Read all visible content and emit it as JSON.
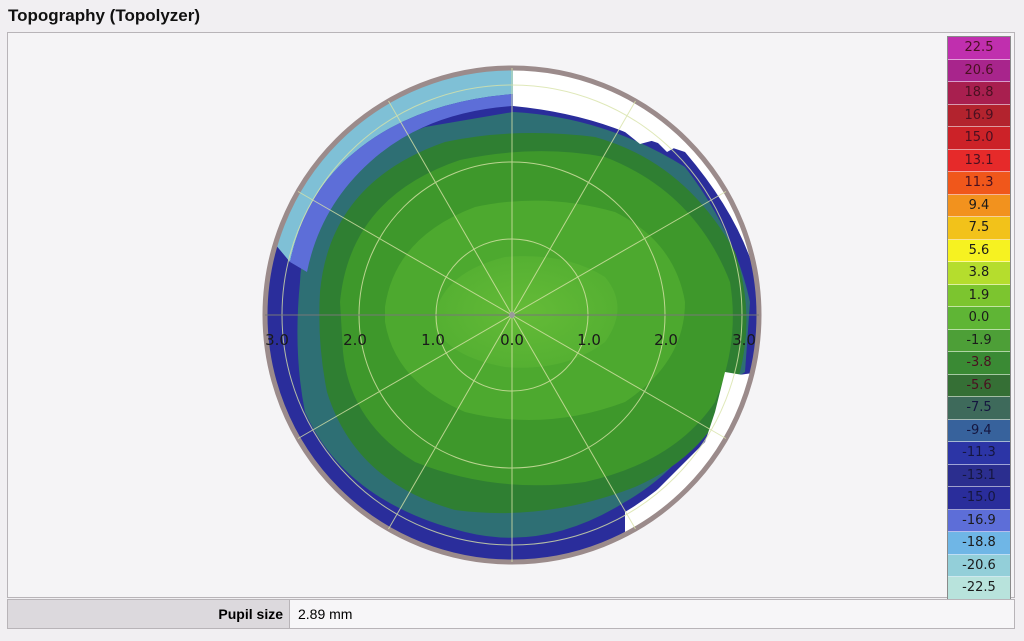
{
  "title": "Topography (Topolyzer)",
  "map": {
    "axis_labels": [
      "3.0",
      "2.0",
      "1.0",
      "0.0",
      "1.0",
      "2.0",
      "3.0"
    ],
    "colors": {
      "rim": "#9b8b8b",
      "bg": "#ffffff",
      "green_center": "#5fb535",
      "green_mid": "#4da92f",
      "green_outer": "#3e982b",
      "green_dark": "#2f7f32",
      "teal": "#2e6f74",
      "navy": "#2a2d9b",
      "blue": "#3b44b8",
      "light_blue": "#7fc0d6"
    }
  },
  "legend": {
    "values": [
      "22.5",
      "20.6",
      "18.8",
      "16.9",
      "15.0",
      "13.1",
      "11.3",
      "9.4",
      "7.5",
      "5.6",
      "3.8",
      "1.9",
      "0.0",
      "-1.9",
      "-3.8",
      "-5.6",
      "-7.5",
      "-9.4",
      "-11.3",
      "-13.1",
      "-15.0",
      "-16.9",
      "-18.8",
      "-20.6",
      "-22.5"
    ],
    "colors": [
      "#c02fae",
      "#a8258c",
      "#a81f4f",
      "#b3232e",
      "#cc2228",
      "#e62a2a",
      "#f0571b",
      "#f2921e",
      "#f2c21a",
      "#f6f221",
      "#b5dd2d",
      "#7cc52f",
      "#5fb535",
      "#4d9f37",
      "#3a8a34",
      "#356f35",
      "#3e6a5b",
      "#37629c",
      "#2c35a6",
      "#2b2e8f",
      "#2a2d9b",
      "#5d6ed8",
      "#6fb6e6",
      "#93cfd9",
      "#b8e3dc"
    ],
    "text_dark_from": 7
  },
  "footer": {
    "label": "Pupil size",
    "value": "2.89 mm"
  }
}
